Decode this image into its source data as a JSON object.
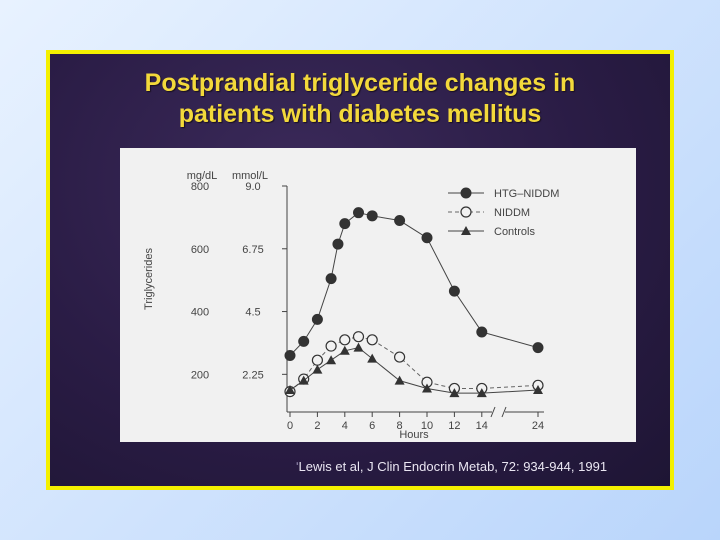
{
  "slide": {
    "title_line1": "Postprandial triglyceride changes in",
    "title_line2": "patients with diabetes mellitus",
    "citation_prefix": "ʹ",
    "citation": "Lewis et al, J Clin Endocrin Metab, 72: 934-944, 1991",
    "colors": {
      "border": "#f4f000",
      "title": "#f3d93b",
      "background": "#2a1c45",
      "panel": "#f1f1f1"
    }
  },
  "chart_data": {
    "type": "line",
    "title": "",
    "xlabel": "Hours",
    "ylabel": "Triglycerides",
    "y_unit_left": "mg/dL",
    "y_unit_right": "mmol/L",
    "y_ticks_mgdl": [
      "800",
      "600",
      "400",
      "200"
    ],
    "y_ticks_mmol": [
      "9.0",
      "6.75",
      "4.5",
      "2.25"
    ],
    "y_tick_values": [
      800,
      600,
      400,
      200
    ],
    "ylim": [
      80,
      800
    ],
    "x_ticks": [
      "0",
      "2",
      "4",
      "6",
      "8",
      "10",
      "12",
      "14",
      "24"
    ],
    "x_tick_values": [
      0,
      2,
      4,
      6,
      8,
      10,
      12,
      14,
      24
    ],
    "axis_break_between": [
      14,
      24
    ],
    "legend_position": "top-right",
    "grid": false,
    "series": [
      {
        "name": "HTG–NIDDM",
        "marker": "filled-circle",
        "line": "solid",
        "x": [
          0,
          1,
          2,
          3,
          3.5,
          4,
          5,
          6,
          8,
          10,
          12,
          14,
          24
        ],
        "y": [
          260,
          305,
          375,
          505,
          615,
          680,
          715,
          705,
          690,
          635,
          465,
          335,
          285
        ]
      },
      {
        "name": "NIDDM",
        "marker": "open-circle",
        "line": "dashed",
        "x": [
          0,
          1,
          2,
          3,
          4,
          5,
          6,
          8,
          10,
          12,
          14,
          24
        ],
        "y": [
          145,
          185,
          245,
          290,
          310,
          320,
          310,
          255,
          175,
          155,
          155,
          165
        ]
      },
      {
        "name": "Controls",
        "marker": "filled-triangle",
        "line": "solid",
        "x": [
          0,
          1,
          2,
          3,
          4,
          5,
          6,
          8,
          10,
          12,
          14,
          24
        ],
        "y": [
          150,
          180,
          215,
          245,
          275,
          285,
          250,
          180,
          155,
          140,
          140,
          150
        ]
      }
    ]
  }
}
